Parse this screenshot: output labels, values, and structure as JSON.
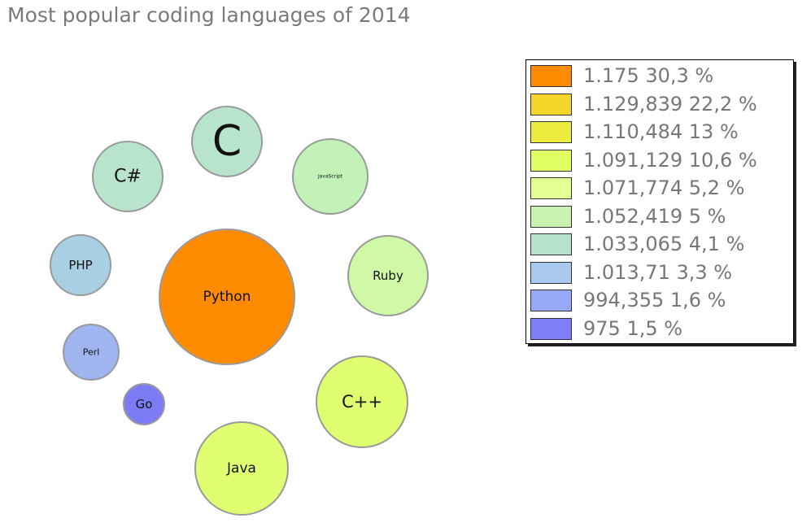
{
  "chart_data": {
    "type": "bubble",
    "title": "Most popular coding languages of 2014",
    "bubbles": [
      {
        "label": "Python",
        "value": 30.3,
        "color": "#ff8c00"
      },
      {
        "label": "Java",
        "value": 22.2,
        "color": "#e0ff70"
      },
      {
        "label": "C++",
        "value": 13,
        "color": "#e0ff70"
      },
      {
        "label": "C",
        "value": 10.6,
        "color": "#b8e4cc"
      },
      {
        "label": "Ruby",
        "value": 5.2,
        "color": "#cff9a6"
      },
      {
        "label": "C#",
        "value": 5,
        "color": "#b8e4cc"
      },
      {
        "label": "JavaScript",
        "value": 4.1,
        "color": "#c2f2b8"
      },
      {
        "label": "PHP",
        "value": 3.3,
        "color": "#a8d0e2"
      },
      {
        "label": "Perl",
        "value": 1.6,
        "color": "#a0b4f0"
      },
      {
        "label": "Go",
        "value": 1.5,
        "color": "#7b7bf5"
      }
    ],
    "legend": {
      "position": "right",
      "entries": [
        {
          "text": "1.175 30,3 %",
          "color": "#ff8c00"
        },
        {
          "text": "1.129,839 22,2 %",
          "color": "#f4d52a"
        },
        {
          "text": "1.110,484 13 %",
          "color": "#ecec40"
        },
        {
          "text": "1.091,129 10,6 %",
          "color": "#e2ff64"
        },
        {
          "text": "1.071,774 5,2 %",
          "color": "#e4ff94"
        },
        {
          "text": "1.052,419 5 %",
          "color": "#caf2b0"
        },
        {
          "text": "1.033,065 4,1 %",
          "color": "#b6e2cc"
        },
        {
          "text": "1.013,71 3,3 %",
          "color": "#a8c8ee"
        },
        {
          "text": "994,355 1,6 %",
          "color": "#96a8f6"
        },
        {
          "text": "975 1,5 %",
          "color": "#7e7ef6"
        }
      ]
    }
  }
}
